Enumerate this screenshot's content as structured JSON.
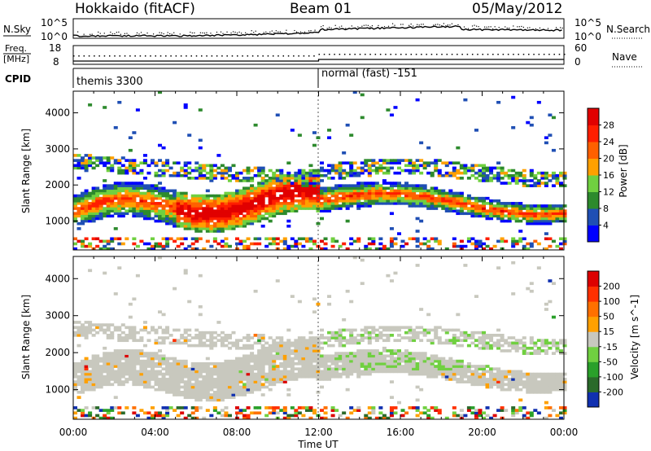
{
  "header": {
    "station": "Hokkaido (fitACF)",
    "beam": "Beam 01",
    "date": "05/May/2012"
  },
  "strip_labels": {
    "nsky": "N.Sky",
    "nsky_ticks": [
      "10^5",
      "10^0"
    ],
    "nsearch": "N.Search",
    "freq_line1": "Freq.",
    "freq_line2": "[MHz]",
    "freq_ticks": [
      "18",
      "8"
    ],
    "nave_ticks": [
      "60",
      "0"
    ],
    "nave": "Nave",
    "cpid": "CPID"
  },
  "cpid_segments": [
    {
      "label": "themis 3300"
    },
    {
      "label": "normal (fast) -151"
    }
  ],
  "x_axis": {
    "label": "Time UT",
    "ticks": [
      "00:00",
      "04:00",
      "08:00",
      "12:00",
      "16:00",
      "20:00",
      "00:00"
    ]
  },
  "chart_data": [
    {
      "type": "heatmap",
      "name": "power",
      "ylabel": "Slant Range [km]",
      "yticks": [
        "1000",
        "2000",
        "3000",
        "4000"
      ],
      "ylim": [
        200,
        4600
      ],
      "xlim_hours": [
        0,
        24
      ],
      "colorbar": {
        "label": "Power [dB]",
        "ticks": [
          "4",
          "8",
          "12",
          "16",
          "20",
          "24",
          "28"
        ],
        "colors": [
          "#0000ff",
          "#1f4fb4",
          "#2d8a2d",
          "#70d040",
          "#ffa000",
          "#ff6000",
          "#ff1e00",
          "#e10000"
        ]
      }
    },
    {
      "type": "heatmap",
      "name": "velocity",
      "ylabel": "Slant Range [km]",
      "yticks": [
        "1000",
        "2000",
        "3000",
        "4000"
      ],
      "ylim": [
        200,
        4600
      ],
      "xlim_hours": [
        0,
        24
      ],
      "colorbar": {
        "label": "Velocity [m s^-1]",
        "ticks": [
          "200",
          "100",
          "50",
          "15",
          "-15",
          "-50",
          "-100",
          "-200"
        ],
        "colors": [
          "#1030b0",
          "#2a6a2a",
          "#2aa02a",
          "#70d040",
          "#c8c8be",
          "#ffa000",
          "#ff7000",
          "#ff3000",
          "#dd0000"
        ]
      }
    }
  ]
}
